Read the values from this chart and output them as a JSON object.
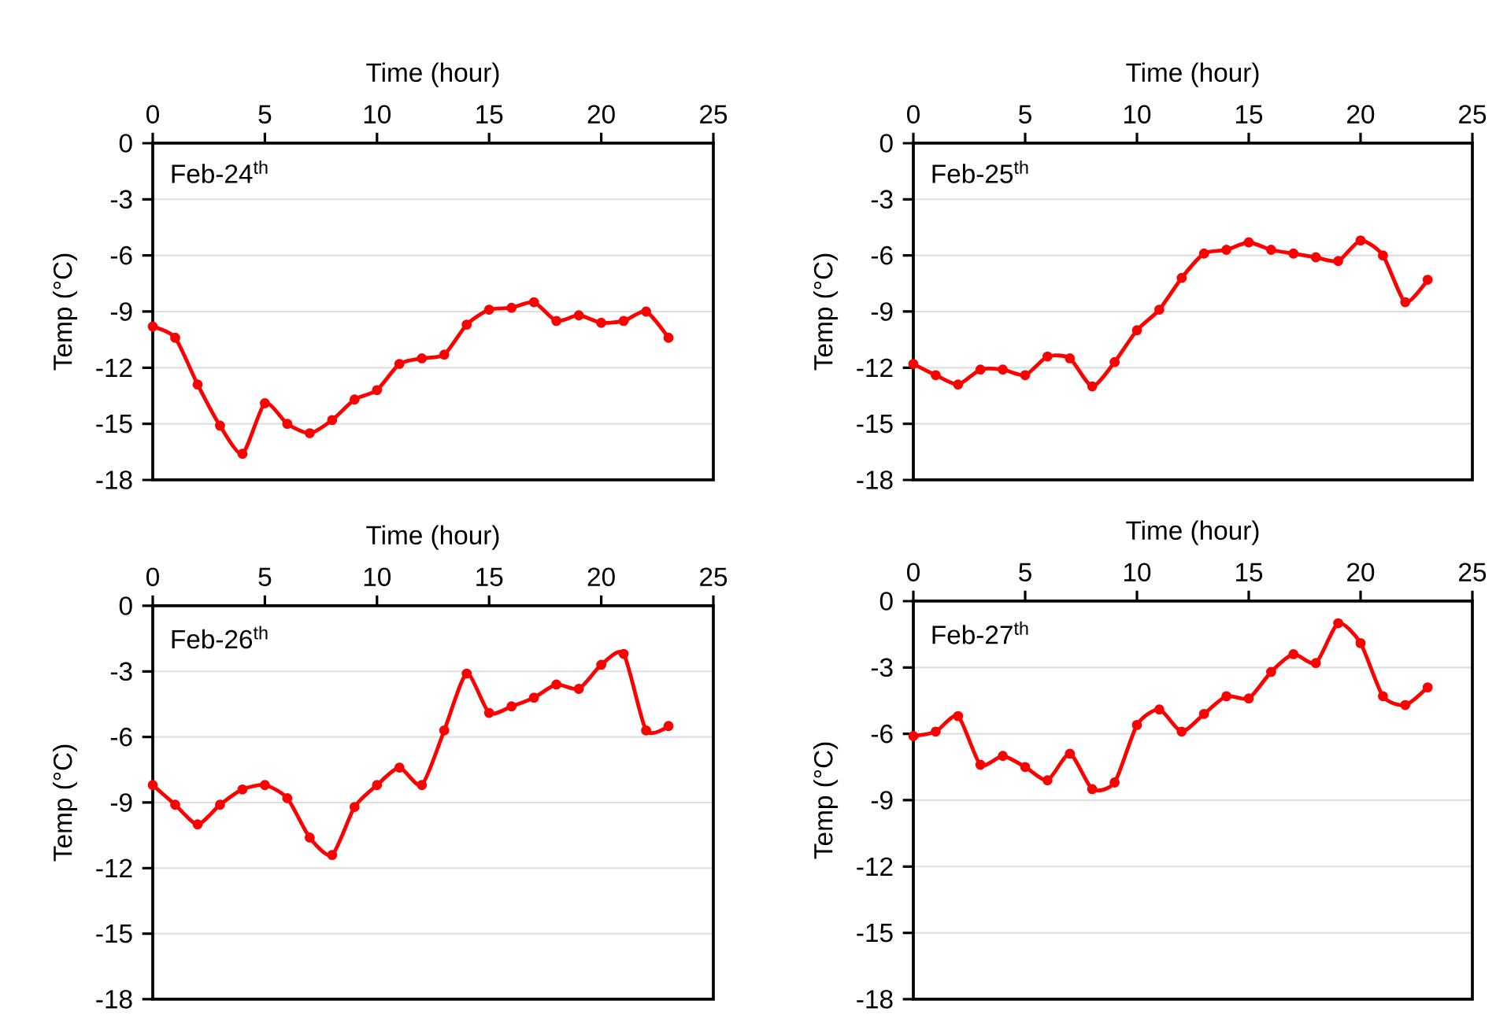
{
  "chart_data": [
    {
      "type": "line",
      "xlabel": "Time (hour)",
      "ylabel": "Temp (°C)",
      "annotations": [
        "Feb-24$^{th}$"
      ],
      "color": "#ff0000",
      "marker": "circle",
      "grid": "y",
      "xlim": [
        0,
        25
      ],
      "xticks": [
        0,
        5,
        10,
        15,
        20,
        25
      ],
      "ylim": [
        -18,
        0
      ],
      "yticks": [
        -18,
        -15,
        -12,
        -9,
        -6,
        -3,
        0
      ],
      "x": [
        0,
        1,
        2,
        3,
        4,
        5,
        6,
        7,
        8,
        9,
        10,
        11,
        12,
        13,
        14,
        15,
        16,
        17,
        18,
        19,
        20,
        21,
        22,
        23
      ],
      "values": [
        -9.8,
        -10.4,
        -12.9,
        -15.1,
        -16.6,
        -13.9,
        -15.0,
        -15.5,
        -14.8,
        -13.7,
        -13.2,
        -11.8,
        -11.5,
        -11.3,
        -9.7,
        -8.9,
        -8.8,
        -8.5,
        -9.5,
        -9.2,
        -9.6,
        -9.5,
        -9.0,
        -10.4
      ]
    },
    {
      "type": "line",
      "xlabel": "Time (hour)",
      "ylabel": "Temp (°C)",
      "annotations": [
        "Feb-25$^{th}$"
      ],
      "color": "#ff0000",
      "marker": "circle",
      "grid": "y",
      "xlim": [
        0,
        25
      ],
      "xticks": [
        0,
        5,
        10,
        15,
        20,
        25
      ],
      "ylim": [
        -18,
        0
      ],
      "yticks": [
        -18,
        -15,
        -12,
        -9,
        -6,
        -3,
        0
      ],
      "x": [
        0,
        1,
        2,
        3,
        4,
        5,
        6,
        7,
        8,
        9,
        10,
        11,
        12,
        13,
        14,
        15,
        16,
        17,
        18,
        19,
        20,
        21,
        22,
        23
      ],
      "values": [
        -11.8,
        -12.4,
        -12.9,
        -12.1,
        -12.1,
        -12.4,
        -11.4,
        -11.5,
        -13.0,
        -11.7,
        -10.0,
        -8.9,
        -7.2,
        -5.9,
        -5.7,
        -5.3,
        -5.7,
        -5.9,
        -6.1,
        -6.3,
        -5.2,
        -6.0,
        -8.5,
        -7.3
      ]
    },
    {
      "type": "line",
      "xlabel": "Time (hour)",
      "ylabel": "Temp (°C)",
      "annotations": [
        "Feb-26$^{th}$"
      ],
      "color": "#ff0000",
      "marker": "circle",
      "grid": "y",
      "xlim": [
        0,
        25
      ],
      "xticks": [
        0,
        5,
        10,
        15,
        20,
        25
      ],
      "ylim": [
        -18,
        0
      ],
      "yticks": [
        -18,
        -15,
        -12,
        -9,
        -6,
        -3,
        0
      ],
      "x": [
        0,
        1,
        2,
        3,
        4,
        5,
        6,
        7,
        8,
        9,
        10,
        11,
        12,
        13,
        14,
        15,
        16,
        17,
        18,
        19,
        20,
        21,
        22,
        23
      ],
      "values": [
        -8.2,
        -9.1,
        -10.0,
        -9.1,
        -8.4,
        -8.2,
        -8.8,
        -10.6,
        -11.4,
        -9.2,
        -8.2,
        -7.4,
        -8.2,
        -5.7,
        -3.1,
        -4.9,
        -4.6,
        -4.2,
        -3.6,
        -3.8,
        -2.7,
        -2.2,
        -5.7,
        -5.5
      ]
    },
    {
      "type": "line",
      "xlabel": "Time (hour)",
      "ylabel": "Temp (°C)",
      "annotations": [
        "Feb-27$^{th}$"
      ],
      "color": "#ff0000",
      "marker": "circle",
      "grid": "y",
      "xlim": [
        0,
        25
      ],
      "xticks": [
        0,
        5,
        10,
        15,
        20,
        25
      ],
      "ylim": [
        -18,
        0
      ],
      "yticks": [
        -18,
        -15,
        -12,
        -9,
        -6,
        -3,
        0
      ],
      "x": [
        0,
        1,
        2,
        3,
        4,
        5,
        6,
        7,
        8,
        9,
        10,
        11,
        12,
        13,
        14,
        15,
        16,
        17,
        18,
        19,
        20,
        21,
        22,
        23
      ],
      "values": [
        -6.1,
        -5.9,
        -5.2,
        -7.4,
        -7.0,
        -7.5,
        -8.1,
        -6.9,
        -8.5,
        -8.2,
        -5.6,
        -4.9,
        -5.9,
        -5.1,
        -4.3,
        -4.4,
        -3.2,
        -2.4,
        -2.8,
        -1.0,
        -1.9,
        -4.3,
        -4.7,
        -3.9
      ]
    }
  ]
}
